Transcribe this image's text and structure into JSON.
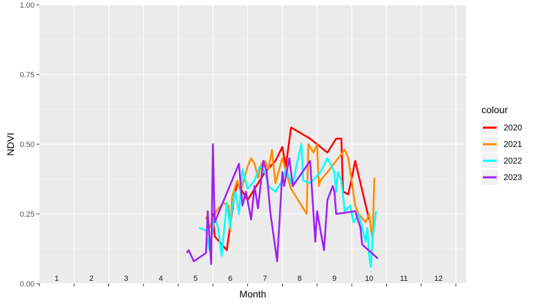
{
  "chart_data": {
    "type": "line",
    "title": "",
    "xlabel": "Month",
    "ylabel": "NDVI",
    "ylim": [
      0,
      1
    ],
    "xlim": [
      0.5,
      12.8
    ],
    "y_ticks": [
      "0.00",
      "0.25",
      "0.50",
      "0.75",
      "1.00"
    ],
    "y_tick_values": [
      0,
      0.25,
      0.5,
      0.75,
      1.0
    ],
    "month_labels": [
      "1",
      "2",
      "3",
      "4",
      "5",
      "6",
      "7",
      "8",
      "9",
      "10",
      "11",
      "12"
    ],
    "month_positions": [
      1,
      2,
      3,
      4,
      5,
      6,
      7,
      8,
      9,
      10,
      11,
      12
    ],
    "grid": true,
    "legend": {
      "title": "colour",
      "placement": "right"
    },
    "series": [
      {
        "name": "2020",
        "color": "#FF0000",
        "points": [
          [
            5.45,
            0.2
          ],
          [
            5.5,
            0.25
          ],
          [
            5.55,
            0.17
          ],
          [
            5.9,
            0.12
          ],
          [
            6.1,
            0.3
          ],
          [
            6.2,
            0.36
          ],
          [
            6.5,
            0.3
          ],
          [
            7.0,
            0.4
          ],
          [
            7.3,
            0.44
          ],
          [
            7.5,
            0.49
          ],
          [
            7.6,
            0.42
          ],
          [
            7.75,
            0.56
          ],
          [
            8.3,
            0.52
          ],
          [
            8.8,
            0.47
          ],
          [
            9.05,
            0.52
          ],
          [
            9.2,
            0.52
          ],
          [
            9.25,
            0.33
          ],
          [
            9.4,
            0.32
          ],
          [
            9.6,
            0.44
          ],
          [
            10.0,
            0.23
          ]
        ]
      },
      {
        "name": "2021",
        "color": "#FF8C00",
        "points": [
          [
            5.3,
            0.24
          ],
          [
            5.4,
            0.2
          ],
          [
            5.6,
            0.26
          ],
          [
            5.8,
            0.29
          ],
          [
            5.95,
            0.28
          ],
          [
            6.0,
            0.19
          ],
          [
            6.05,
            0.31
          ],
          [
            6.2,
            0.37
          ],
          [
            6.3,
            0.33
          ],
          [
            6.5,
            0.42
          ],
          [
            6.6,
            0.45
          ],
          [
            6.7,
            0.43
          ],
          [
            6.8,
            0.38
          ],
          [
            6.9,
            0.43
          ],
          [
            7.0,
            0.44
          ],
          [
            7.1,
            0.41
          ],
          [
            7.2,
            0.48
          ],
          [
            7.3,
            0.36
          ],
          [
            7.5,
            0.45
          ],
          [
            7.75,
            0.34
          ],
          [
            8.2,
            0.25
          ],
          [
            8.25,
            0.5
          ],
          [
            8.4,
            0.47
          ],
          [
            8.5,
            0.5
          ],
          [
            8.55,
            0.35
          ],
          [
            8.6,
            0.37
          ],
          [
            8.8,
            0.4
          ],
          [
            9.3,
            0.48
          ],
          [
            9.4,
            0.45
          ],
          [
            9.6,
            0.28
          ],
          [
            9.7,
            0.25
          ],
          [
            9.9,
            0.22
          ],
          [
            10.0,
            0.25
          ],
          [
            10.05,
            0.2
          ],
          [
            10.1,
            0.16
          ],
          [
            10.15,
            0.38
          ]
        ]
      },
      {
        "name": "2022",
        "color": "#00FFFF",
        "points": [
          [
            5.1,
            0.2
          ],
          [
            5.3,
            0.19
          ],
          [
            5.4,
            0.12
          ],
          [
            5.55,
            0.24
          ],
          [
            5.65,
            0.2
          ],
          [
            5.75,
            0.1
          ],
          [
            5.9,
            0.29
          ],
          [
            6.0,
            0.2
          ],
          [
            6.05,
            0.27
          ],
          [
            6.15,
            0.33
          ],
          [
            6.25,
            0.25
          ],
          [
            6.35,
            0.41
          ],
          [
            6.5,
            0.34
          ],
          [
            6.7,
            0.37
          ],
          [
            6.85,
            0.42
          ],
          [
            7.0,
            0.4
          ],
          [
            7.1,
            0.35
          ],
          [
            7.3,
            0.33
          ],
          [
            7.5,
            0.37
          ],
          [
            7.6,
            0.41
          ],
          [
            7.8,
            0.35
          ],
          [
            7.9,
            0.42
          ],
          [
            8.05,
            0.5
          ],
          [
            8.1,
            0.37
          ],
          [
            8.3,
            0.36
          ],
          [
            8.6,
            0.4
          ],
          [
            8.8,
            0.45
          ],
          [
            9.0,
            0.4
          ],
          [
            9.05,
            0.33
          ],
          [
            9.1,
            0.4
          ],
          [
            9.2,
            0.37
          ],
          [
            9.3,
            0.26
          ],
          [
            9.45,
            0.28
          ],
          [
            9.55,
            0.22
          ],
          [
            9.7,
            0.25
          ],
          [
            9.8,
            0.2
          ],
          [
            9.9,
            0.15
          ],
          [
            9.95,
            0.2
          ],
          [
            10.0,
            0.1
          ],
          [
            10.05,
            0.06
          ],
          [
            10.1,
            0.16
          ],
          [
            10.2,
            0.26
          ]
        ]
      },
      {
        "name": "2023",
        "color": "#A020F0",
        "points": [
          [
            4.75,
            0.11
          ],
          [
            4.8,
            0.12
          ],
          [
            4.95,
            0.08
          ],
          [
            5.3,
            0.11
          ],
          [
            5.35,
            0.26
          ],
          [
            5.45,
            0.07
          ],
          [
            5.5,
            0.5
          ],
          [
            5.55,
            0.22
          ],
          [
            5.65,
            0.25
          ],
          [
            6.25,
            0.43
          ],
          [
            6.35,
            0.28
          ],
          [
            6.45,
            0.33
          ],
          [
            6.6,
            0.23
          ],
          [
            6.7,
            0.35
          ],
          [
            6.8,
            0.27
          ],
          [
            6.95,
            0.44
          ],
          [
            7.05,
            0.4
          ],
          [
            7.15,
            0.26
          ],
          [
            7.35,
            0.08
          ],
          [
            7.5,
            0.4
          ],
          [
            7.55,
            0.35
          ],
          [
            7.7,
            0.45
          ],
          [
            7.8,
            0.35
          ],
          [
            8.3,
            0.44
          ],
          [
            8.45,
            0.15
          ],
          [
            8.5,
            0.26
          ],
          [
            8.7,
            0.12
          ],
          [
            8.8,
            0.3
          ],
          [
            8.95,
            0.35
          ],
          [
            9.0,
            0.33
          ],
          [
            9.05,
            0.25
          ],
          [
            9.6,
            0.26
          ],
          [
            9.75,
            0.2
          ],
          [
            9.8,
            0.14
          ],
          [
            10.25,
            0.09
          ]
        ]
      }
    ]
  }
}
